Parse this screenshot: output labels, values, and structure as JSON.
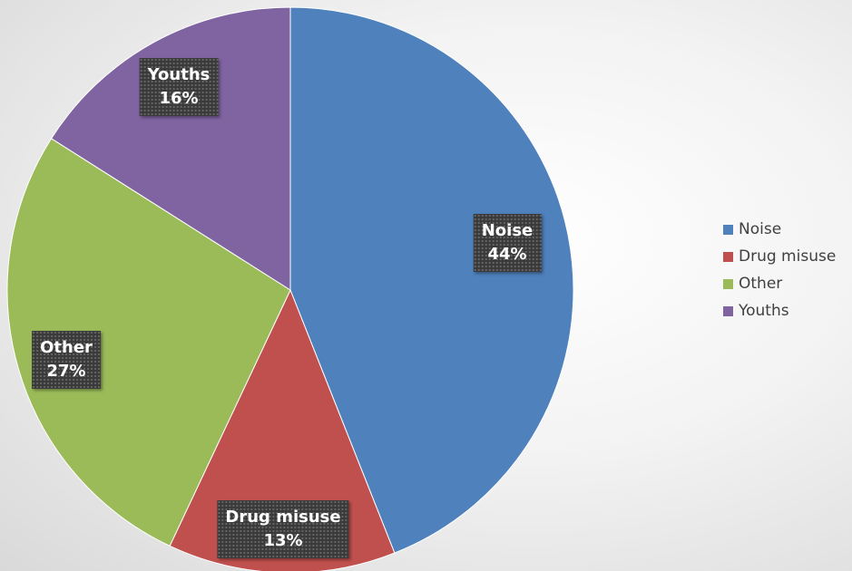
{
  "chart_data": {
    "type": "pie",
    "categories": [
      "Noise",
      "Drug misuse",
      "Other",
      "Youths"
    ],
    "values": [
      44,
      13,
      27,
      16
    ],
    "labels": [
      "44%",
      "13%",
      "27%",
      "16%"
    ],
    "colors": [
      "#4f81bd",
      "#c0504d",
      "#9bbb59",
      "#8064a2"
    ],
    "legend": "right",
    "start_angle": "12 o'clock",
    "direction": "clockwise"
  }
}
